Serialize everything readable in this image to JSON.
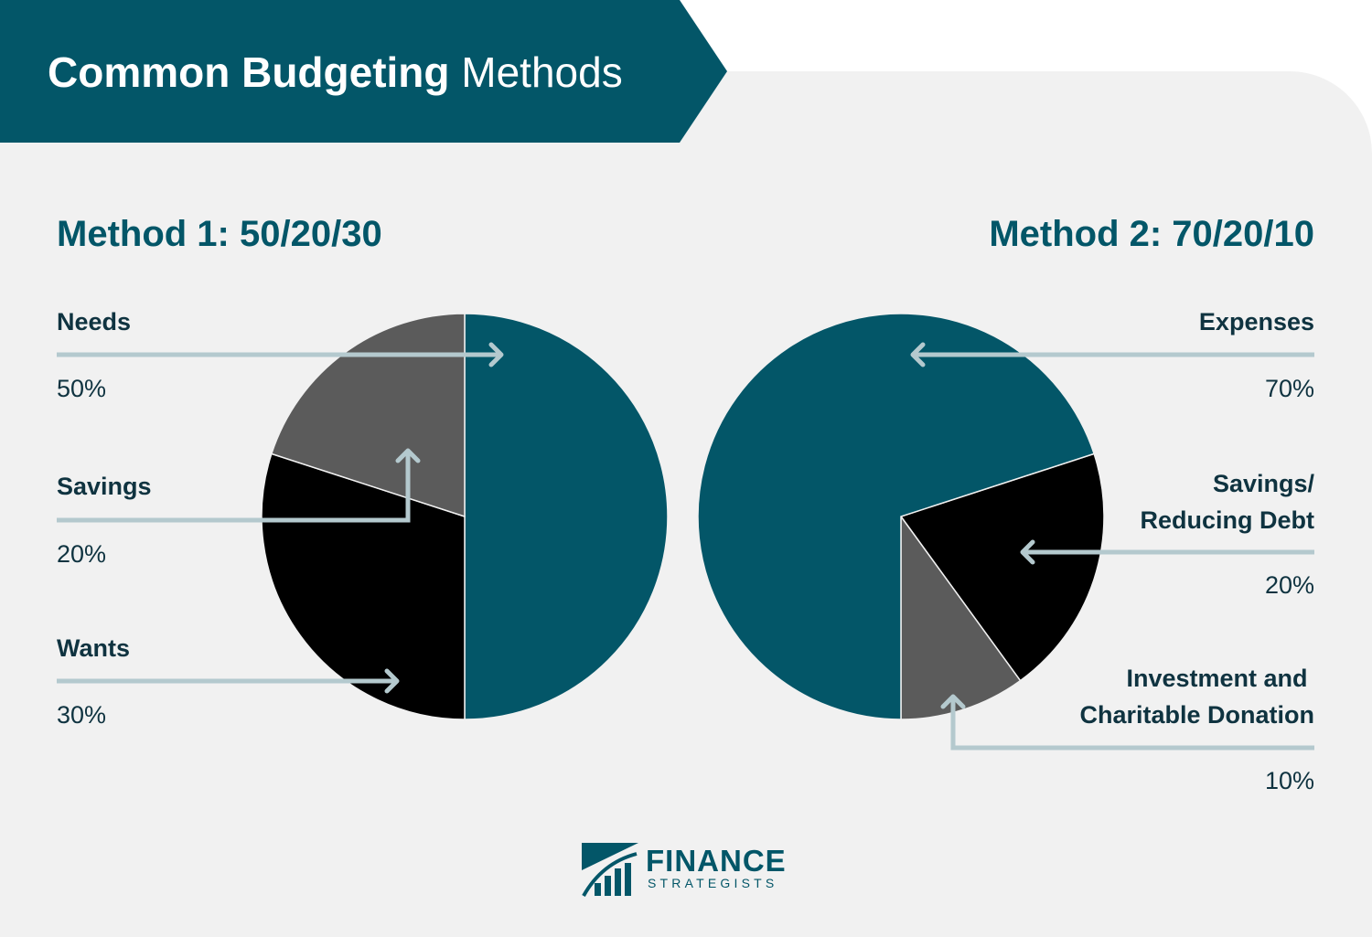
{
  "header": {
    "title_bold": "Common Budgeting",
    "title_regular": " Methods"
  },
  "colors": {
    "teal": "#035668",
    "black": "#000000",
    "gray": "#5b5b5b",
    "arrow": "#b4c9ce",
    "background": "#f1f1f1"
  },
  "chart_data": [
    {
      "type": "pie",
      "title": "Method 1: 50/20/30",
      "slices": [
        {
          "label": "Needs",
          "value": 50,
          "value_label": "50%",
          "color": "#035668"
        },
        {
          "label": "Wants",
          "value": 30,
          "value_label": "30%",
          "color": "#000000"
        },
        {
          "label": "Savings",
          "value": 20,
          "value_label": "20%",
          "color": "#5b5b5b"
        }
      ]
    },
    {
      "type": "pie",
      "title": "Method 2: 70/20/10",
      "slices": [
        {
          "label": "Expenses",
          "value": 70,
          "value_label": "70%",
          "color": "#035668"
        },
        {
          "label": "Savings/\nReducing Debt",
          "value": 20,
          "value_label": "20%",
          "color": "#000000"
        },
        {
          "label": "Investment and \nCharitable Donation",
          "value": 10,
          "value_label": "10%",
          "color": "#5b5b5b"
        }
      ]
    }
  ],
  "logo": {
    "name": "FINANCE",
    "sub": "STRATEGISTS"
  }
}
